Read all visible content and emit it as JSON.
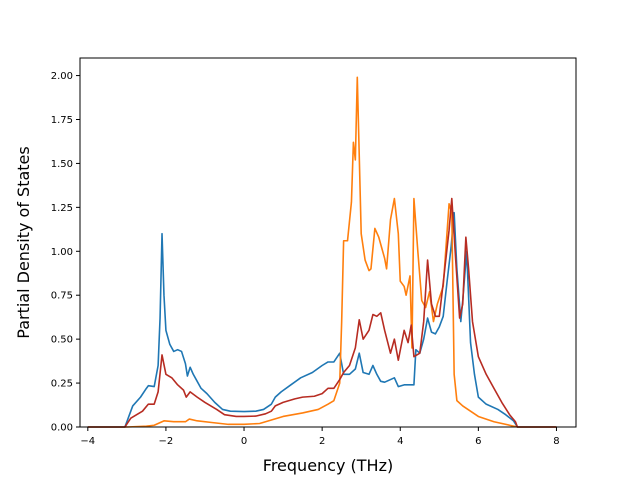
{
  "chart_data": {
    "type": "line",
    "xlabel": "Frequency (THz)",
    "ylabel": "Partial Density of States",
    "xlim": [
      -4.2,
      8.5
    ],
    "ylim": [
      0,
      2.1
    ],
    "xticks": [
      -4,
      -2,
      0,
      2,
      4,
      6,
      8
    ],
    "yticks": [
      0.0,
      0.25,
      0.5,
      0.75,
      1.0,
      1.25,
      1.5,
      1.75,
      2.0
    ],
    "xtick_labels": [
      "−4",
      "−2",
      "0",
      "2",
      "4",
      "6",
      "8"
    ],
    "ytick_labels": [
      "0.00",
      "0.25",
      "0.50",
      "0.75",
      "1.00",
      "1.25",
      "1.50",
      "1.75",
      "2.00"
    ],
    "grid": false,
    "series": [
      {
        "color": "#1f77b4",
        "points": [
          [
            -4.0,
            0
          ],
          [
            -3.05,
            0
          ],
          [
            -2.85,
            0.12
          ],
          [
            -2.65,
            0.17
          ],
          [
            -2.5,
            0.22
          ],
          [
            -2.45,
            0.235
          ],
          [
            -2.3,
            0.23
          ],
          [
            -2.2,
            0.35
          ],
          [
            -2.15,
            0.62
          ],
          [
            -2.1,
            1.1
          ],
          [
            -2.05,
            0.75
          ],
          [
            -2.0,
            0.55
          ],
          [
            -1.9,
            0.47
          ],
          [
            -1.8,
            0.43
          ],
          [
            -1.7,
            0.44
          ],
          [
            -1.6,
            0.43
          ],
          [
            -1.5,
            0.36
          ],
          [
            -1.45,
            0.29
          ],
          [
            -1.38,
            0.34
          ],
          [
            -1.3,
            0.3
          ],
          [
            -1.2,
            0.26
          ],
          [
            -1.1,
            0.22
          ],
          [
            -0.95,
            0.19
          ],
          [
            -0.75,
            0.14
          ],
          [
            -0.55,
            0.1
          ],
          [
            -0.35,
            0.09
          ],
          [
            0.0,
            0.088
          ],
          [
            0.3,
            0.09
          ],
          [
            0.5,
            0.1
          ],
          [
            0.7,
            0.13
          ],
          [
            0.8,
            0.17
          ],
          [
            0.95,
            0.2
          ],
          [
            1.2,
            0.24
          ],
          [
            1.45,
            0.28
          ],
          [
            1.75,
            0.31
          ],
          [
            2.0,
            0.35
          ],
          [
            2.15,
            0.37
          ],
          [
            2.3,
            0.37
          ],
          [
            2.45,
            0.42
          ],
          [
            2.55,
            0.3
          ],
          [
            2.7,
            0.3
          ],
          [
            2.85,
            0.33
          ],
          [
            2.95,
            0.42
          ],
          [
            3.05,
            0.31
          ],
          [
            3.2,
            0.3
          ],
          [
            3.3,
            0.35
          ],
          [
            3.4,
            0.3
          ],
          [
            3.5,
            0.26
          ],
          [
            3.6,
            0.255
          ],
          [
            3.75,
            0.27
          ],
          [
            3.85,
            0.28
          ],
          [
            3.95,
            0.23
          ],
          [
            4.1,
            0.24
          ],
          [
            4.25,
            0.24
          ],
          [
            4.35,
            0.24
          ],
          [
            4.4,
            0.44
          ],
          [
            4.5,
            0.42
          ],
          [
            4.6,
            0.5
          ],
          [
            4.7,
            0.62
          ],
          [
            4.8,
            0.54
          ],
          [
            4.9,
            0.53
          ],
          [
            5.0,
            0.57
          ],
          [
            5.1,
            0.63
          ],
          [
            5.2,
            0.83
          ],
          [
            5.3,
            1.02
          ],
          [
            5.38,
            1.22
          ],
          [
            5.45,
            0.9
          ],
          [
            5.55,
            0.6
          ],
          [
            5.6,
            0.72
          ],
          [
            5.7,
            1.0
          ],
          [
            5.8,
            0.48
          ],
          [
            5.9,
            0.3
          ],
          [
            6.0,
            0.17
          ],
          [
            6.2,
            0.13
          ],
          [
            6.5,
            0.1
          ],
          [
            6.7,
            0.07
          ],
          [
            6.9,
            0.035
          ],
          [
            7.0,
            0
          ],
          [
            8.0,
            0
          ]
        ]
      },
      {
        "color": "#ff7f0e",
        "points": [
          [
            -4.0,
            0
          ],
          [
            -3.0,
            0
          ],
          [
            -2.5,
            0.005
          ],
          [
            -2.3,
            0.01
          ],
          [
            -2.2,
            0.02
          ],
          [
            -2.05,
            0.035
          ],
          [
            -1.8,
            0.03
          ],
          [
            -1.5,
            0.03
          ],
          [
            -1.4,
            0.045
          ],
          [
            -1.2,
            0.035
          ],
          [
            -0.8,
            0.025
          ],
          [
            -0.4,
            0.015
          ],
          [
            0.0,
            0.015
          ],
          [
            0.4,
            0.02
          ],
          [
            0.7,
            0.04
          ],
          [
            1.0,
            0.06
          ],
          [
            1.5,
            0.08
          ],
          [
            1.9,
            0.1
          ],
          [
            2.15,
            0.13
          ],
          [
            2.3,
            0.15
          ],
          [
            2.45,
            0.25
          ],
          [
            2.5,
            0.6
          ],
          [
            2.55,
            1.06
          ],
          [
            2.65,
            1.06
          ],
          [
            2.75,
            1.28
          ],
          [
            2.8,
            1.62
          ],
          [
            2.85,
            1.52
          ],
          [
            2.9,
            1.99
          ],
          [
            3.0,
            1.1
          ],
          [
            3.1,
            0.95
          ],
          [
            3.2,
            0.89
          ],
          [
            3.25,
            0.9
          ],
          [
            3.35,
            1.13
          ],
          [
            3.45,
            1.08
          ],
          [
            3.6,
            0.96
          ],
          [
            3.65,
            0.9
          ],
          [
            3.75,
            1.18
          ],
          [
            3.85,
            1.3
          ],
          [
            3.95,
            1.1
          ],
          [
            4.0,
            0.83
          ],
          [
            4.1,
            0.8
          ],
          [
            4.15,
            0.75
          ],
          [
            4.25,
            0.86
          ],
          [
            4.3,
            0.45
          ],
          [
            4.35,
            1.3
          ],
          [
            4.45,
            1.0
          ],
          [
            4.55,
            0.72
          ],
          [
            4.65,
            0.68
          ],
          [
            4.75,
            0.77
          ],
          [
            4.85,
            0.6
          ],
          [
            4.95,
            0.7
          ],
          [
            5.1,
            0.8
          ],
          [
            5.25,
            1.27
          ],
          [
            5.32,
            1.22
          ],
          [
            5.38,
            0.3
          ],
          [
            5.45,
            0.15
          ],
          [
            5.6,
            0.12
          ],
          [
            5.8,
            0.09
          ],
          [
            6.0,
            0.06
          ],
          [
            6.4,
            0.03
          ],
          [
            6.8,
            0.01
          ],
          [
            7.0,
            0
          ],
          [
            8.0,
            0
          ]
        ]
      },
      {
        "color": "#b72c22",
        "points": [
          [
            -4.0,
            0
          ],
          [
            -3.05,
            0
          ],
          [
            -2.9,
            0.05
          ],
          [
            -2.6,
            0.09
          ],
          [
            -2.45,
            0.13
          ],
          [
            -2.3,
            0.13
          ],
          [
            -2.2,
            0.2
          ],
          [
            -2.1,
            0.41
          ],
          [
            -2.0,
            0.3
          ],
          [
            -1.85,
            0.28
          ],
          [
            -1.7,
            0.24
          ],
          [
            -1.55,
            0.21
          ],
          [
            -1.48,
            0.17
          ],
          [
            -1.38,
            0.2
          ],
          [
            -1.2,
            0.17
          ],
          [
            -1.0,
            0.14
          ],
          [
            -0.7,
            0.1
          ],
          [
            -0.5,
            0.07
          ],
          [
            -0.2,
            0.06
          ],
          [
            0.0,
            0.06
          ],
          [
            0.3,
            0.062
          ],
          [
            0.55,
            0.075
          ],
          [
            0.7,
            0.09
          ],
          [
            0.8,
            0.12
          ],
          [
            1.0,
            0.14
          ],
          [
            1.3,
            0.16
          ],
          [
            1.5,
            0.17
          ],
          [
            1.8,
            0.175
          ],
          [
            2.0,
            0.19
          ],
          [
            2.15,
            0.22
          ],
          [
            2.3,
            0.22
          ],
          [
            2.45,
            0.27
          ],
          [
            2.55,
            0.31
          ],
          [
            2.7,
            0.35
          ],
          [
            2.85,
            0.45
          ],
          [
            2.95,
            0.61
          ],
          [
            3.05,
            0.5
          ],
          [
            3.2,
            0.55
          ],
          [
            3.3,
            0.64
          ],
          [
            3.4,
            0.63
          ],
          [
            3.5,
            0.65
          ],
          [
            3.6,
            0.55
          ],
          [
            3.75,
            0.42
          ],
          [
            3.85,
            0.5
          ],
          [
            3.95,
            0.38
          ],
          [
            4.1,
            0.55
          ],
          [
            4.2,
            0.48
          ],
          [
            4.28,
            0.58
          ],
          [
            4.35,
            0.4
          ],
          [
            4.5,
            0.42
          ],
          [
            4.6,
            0.6
          ],
          [
            4.7,
            0.95
          ],
          [
            4.8,
            0.7
          ],
          [
            4.9,
            0.63
          ],
          [
            5.0,
            0.63
          ],
          [
            5.1,
            0.82
          ],
          [
            5.25,
            1.12
          ],
          [
            5.32,
            1.3
          ],
          [
            5.42,
            0.95
          ],
          [
            5.52,
            0.62
          ],
          [
            5.6,
            0.7
          ],
          [
            5.68,
            1.08
          ],
          [
            5.75,
            0.9
          ],
          [
            5.85,
            0.6
          ],
          [
            6.0,
            0.4
          ],
          [
            6.2,
            0.3
          ],
          [
            6.4,
            0.22
          ],
          [
            6.6,
            0.14
          ],
          [
            6.8,
            0.07
          ],
          [
            6.95,
            0.03
          ],
          [
            7.0,
            0
          ],
          [
            8.0,
            0
          ]
        ]
      }
    ]
  }
}
